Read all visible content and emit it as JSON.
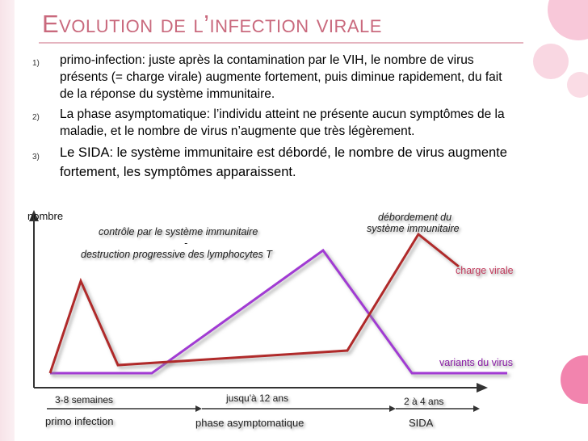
{
  "slide": {
    "title": "Evolution de l’infection virale",
    "bullets": [
      {
        "num": "1)",
        "text": "primo-infection: juste après la contamination par le VIH, le nombre de virus présents (= charge virale) augmente fortement, puis diminue rapidement, du fait de la réponse du système immunitaire."
      },
      {
        "num": "2)",
        "text": "La phase asymptomatique: l’individu atteint ne présente aucun symptômes de la maladie, et le nombre de virus n’augmente que très légèrement."
      },
      {
        "num": "3)",
        "text": "Le SIDA: le système immunitaire est débordé, le nombre de virus augmente fortement, les symptômes apparaissent."
      }
    ]
  },
  "diagram": {
    "y_axis_label": "nombre",
    "control_label": "contrôle par le système immunitaire",
    "dash": "-",
    "destruction_label": "destruction progressive des lymphocytes T",
    "overflow_label_1": "débordement du",
    "overflow_label_2": "système immunitaire",
    "viral_load_label": "charge virale",
    "variants_label": "variants du virus",
    "duration_1": "3-8 semaines",
    "duration_2": "jusqu'à 12 ans",
    "duration_3": "2 à 4 ans",
    "phase_1": "primo infection",
    "phase_2": "phase asymptomatique",
    "phase_3": "SIDA",
    "colors": {
      "viral_load": "#b02a2a",
      "variants": "#a13bd3",
      "title": "#c9697d",
      "accent_circles": [
        "#f28bb0",
        "#f8c0d3",
        "#d9a7b6"
      ]
    }
  }
}
